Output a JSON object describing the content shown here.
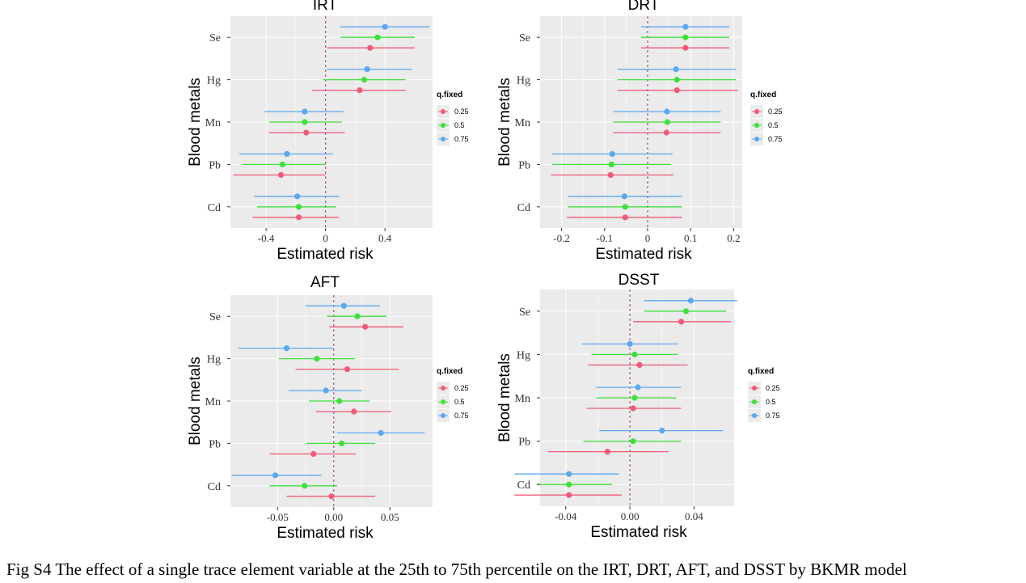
{
  "caption": "Fig S4 The effect of a single trace element variable at the 25th to 75th percentile on the IRT, DRT, AFT, and DSST by BKMR model",
  "colors": {
    "q0.25": "#F15A76",
    "q0.5": "#3FE03A",
    "q0.75": "#5AA8F0",
    "panel_bg": "#EBEBEB",
    "grid": "#FFFFFF",
    "ref_line": "#A0557A"
  },
  "chart_data": [
    {
      "type": "scatter",
      "subtype": "point-range",
      "title": "IRT",
      "xlabel": "Estimated risk",
      "ylabel": "Blood metals",
      "categories": [
        "Se",
        "Hg",
        "Mn",
        "Pb",
        "Cd"
      ],
      "xlim": [
        -0.64,
        0.72
      ],
      "xticks": [
        -0.4,
        0,
        0.4
      ],
      "xtick_labels": [
        "-0.4",
        "0",
        "0.4"
      ],
      "reference_line": 0,
      "grid": true,
      "legend": {
        "title": "q.fixed",
        "labels": [
          "0.25",
          "0.5",
          "0.75"
        ],
        "placement": "right"
      },
      "series": [
        {
          "name": "0.25",
          "estimate": [
            0.3,
            0.23,
            -0.13,
            -0.3,
            -0.18
          ],
          "lower": [
            0.01,
            -0.09,
            -0.38,
            -0.62,
            -0.49
          ],
          "upper": [
            0.6,
            0.54,
            0.13,
            0.0,
            0.09
          ]
        },
        {
          "name": "0.5",
          "estimate": [
            0.35,
            0.26,
            -0.14,
            -0.29,
            -0.18
          ],
          "lower": [
            0.1,
            -0.02,
            -0.38,
            -0.56,
            -0.46
          ],
          "upper": [
            0.6,
            0.54,
            0.11,
            0.0,
            0.07
          ]
        },
        {
          "name": "0.75",
          "estimate": [
            0.4,
            0.28,
            -0.14,
            -0.26,
            -0.19
          ],
          "lower": [
            0.1,
            0.01,
            -0.41,
            -0.58,
            -0.48
          ],
          "upper": [
            0.7,
            0.58,
            0.12,
            0.05,
            0.09
          ]
        }
      ]
    },
    {
      "type": "scatter",
      "subtype": "point-range",
      "title": "DRT",
      "xlabel": "Estimated risk",
      "ylabel": "Blood metals",
      "categories": [
        "Se",
        "Hg",
        "Mn",
        "Pb",
        "Cd"
      ],
      "xlim": [
        -0.25,
        0.22
      ],
      "xticks": [
        -0.2,
        -0.1,
        0,
        0.1,
        0.2
      ],
      "xtick_labels": [
        "-0.2",
        "-0.1",
        "0",
        "0.1",
        "0.2"
      ],
      "reference_line": 0,
      "grid": true,
      "legend": {
        "title": "q.fixed",
        "labels": [
          "0.25",
          "0.5",
          "0.75"
        ],
        "placement": "right"
      },
      "series": [
        {
          "name": "0.25",
          "estimate": [
            0.088,
            0.068,
            0.044,
            -0.086,
            -0.052
          ],
          "lower": [
            -0.015,
            -0.07,
            -0.08,
            -0.225,
            -0.188
          ],
          "upper": [
            0.19,
            0.21,
            0.17,
            0.06,
            0.08
          ]
        },
        {
          "name": "0.5",
          "estimate": [
            0.088,
            0.068,
            0.046,
            -0.084,
            -0.052
          ],
          "lower": [
            -0.015,
            -0.07,
            -0.08,
            -0.222,
            -0.185
          ],
          "upper": [
            0.19,
            0.205,
            0.17,
            0.055,
            0.08
          ]
        },
        {
          "name": "0.75",
          "estimate": [
            0.088,
            0.066,
            0.045,
            -0.082,
            -0.054
          ],
          "lower": [
            -0.015,
            -0.07,
            -0.08,
            -0.222,
            -0.185
          ],
          "upper": [
            0.19,
            0.205,
            0.17,
            0.058,
            0.08
          ]
        }
      ]
    },
    {
      "type": "scatter",
      "subtype": "point-range",
      "title": "AFT",
      "xlabel": "Estimated risk",
      "ylabel": "Blood metals",
      "categories": [
        "Se",
        "Hg",
        "Mn",
        "Pb",
        "Cd"
      ],
      "xlim": [
        -0.092,
        0.088
      ],
      "xticks": [
        -0.05,
        0,
        0.05
      ],
      "xtick_labels": [
        "-0.05",
        "0.00",
        "0.05"
      ],
      "reference_line": 0,
      "grid": true,
      "legend": {
        "title": "q.fixed",
        "labels": [
          "0.25",
          "0.5",
          "0.75"
        ],
        "placement": "right"
      },
      "series": [
        {
          "name": "0.25",
          "estimate": [
            0.028,
            0.012,
            0.018,
            -0.018,
            -0.002
          ],
          "lower": [
            -0.004,
            -0.034,
            -0.016,
            -0.057,
            -0.042
          ],
          "upper": [
            0.062,
            0.058,
            0.051,
            0.02,
            0.037
          ]
        },
        {
          "name": "0.5",
          "estimate": [
            0.021,
            -0.015,
            0.005,
            0.007,
            -0.026
          ],
          "lower": [
            -0.006,
            -0.049,
            -0.022,
            -0.024,
            -0.057
          ],
          "upper": [
            0.047,
            0.019,
            0.032,
            0.037,
            0.003
          ]
        },
        {
          "name": "0.75",
          "estimate": [
            0.009,
            -0.042,
            -0.007,
            0.042,
            -0.052
          ],
          "lower": [
            -0.025,
            -0.085,
            -0.04,
            0.003,
            -0.091
          ],
          "upper": [
            0.041,
            0.0,
            0.025,
            0.081,
            -0.011
          ]
        }
      ]
    },
    {
      "type": "scatter",
      "subtype": "point-range",
      "title": "DSST",
      "xlabel": "Estimated risk",
      "ylabel": "Blood metals",
      "categories": [
        "Se",
        "Hg",
        "Mn",
        "Pb",
        "Cd"
      ],
      "xlim": [
        -0.056,
        0.065
      ],
      "xticks": [
        -0.04,
        0,
        0.04
      ],
      "xtick_labels": [
        "-0.04",
        "0.00",
        "0.04"
      ],
      "reference_line": 0,
      "grid": true,
      "legend": {
        "title": "q.fixed",
        "labels": [
          "0.25",
          "0.5",
          "0.75"
        ],
        "placement": "right"
      },
      "series": [
        {
          "name": "0.25",
          "estimate": [
            0.032,
            0.006,
            0.002,
            -0.014,
            -0.038
          ],
          "lower": [
            0.002,
            -0.026,
            -0.027,
            -0.051,
            -0.072
          ],
          "upper": [
            0.063,
            0.036,
            0.032,
            0.024,
            -0.005
          ]
        },
        {
          "name": "0.5",
          "estimate": [
            0.035,
            0.003,
            0.003,
            0.002,
            -0.038
          ],
          "lower": [
            0.009,
            -0.024,
            -0.021,
            -0.029,
            -0.058
          ],
          "upper": [
            0.06,
            0.03,
            0.029,
            0.032,
            -0.011
          ]
        },
        {
          "name": "0.75",
          "estimate": [
            0.038,
            0.0,
            0.005,
            0.02,
            -0.038
          ],
          "lower": [
            0.009,
            -0.03,
            -0.021,
            -0.019,
            -0.072
          ],
          "upper": [
            0.067,
            0.03,
            0.032,
            0.058,
            -0.007
          ]
        }
      ]
    }
  ]
}
